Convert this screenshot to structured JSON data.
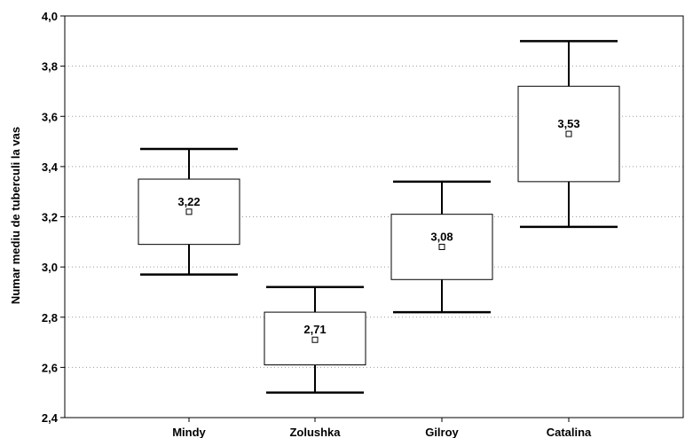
{
  "chart_data": {
    "type": "boxplot",
    "title": "",
    "xlabel": "",
    "ylabel": "Numar mediu de tuberculi la vas",
    "ylim": [
      2.4,
      4.0
    ],
    "yticks": [
      "2,4",
      "2,6",
      "2,8",
      "3,0",
      "3,2",
      "3,4",
      "3,6",
      "3,8",
      "4,0"
    ],
    "ytick_values": [
      2.4,
      2.6,
      2.8,
      3.0,
      3.2,
      3.4,
      3.6,
      3.8,
      4.0
    ],
    "grid": true,
    "categories": [
      "Mindy",
      "Zolushka",
      "Gilroy",
      "Catalina"
    ],
    "groups": [
      {
        "category": "Mindy",
        "mean": 3.22,
        "mean_label": "3,22",
        "box_low": 3.09,
        "box_high": 3.35,
        "whisker_low": 2.97,
        "whisker_high": 3.47
      },
      {
        "category": "Zolushka",
        "mean": 2.71,
        "mean_label": "2,71",
        "box_low": 2.61,
        "box_high": 2.82,
        "whisker_low": 2.5,
        "whisker_high": 2.92
      },
      {
        "category": "Gilroy",
        "mean": 3.08,
        "mean_label": "3,08",
        "box_low": 2.95,
        "box_high": 3.21,
        "whisker_low": 2.82,
        "whisker_high": 3.34
      },
      {
        "category": "Catalina",
        "mean": 3.53,
        "mean_label": "3,53",
        "box_low": 3.34,
        "box_high": 3.72,
        "whisker_low": 3.16,
        "whisker_high": 3.9
      }
    ]
  }
}
